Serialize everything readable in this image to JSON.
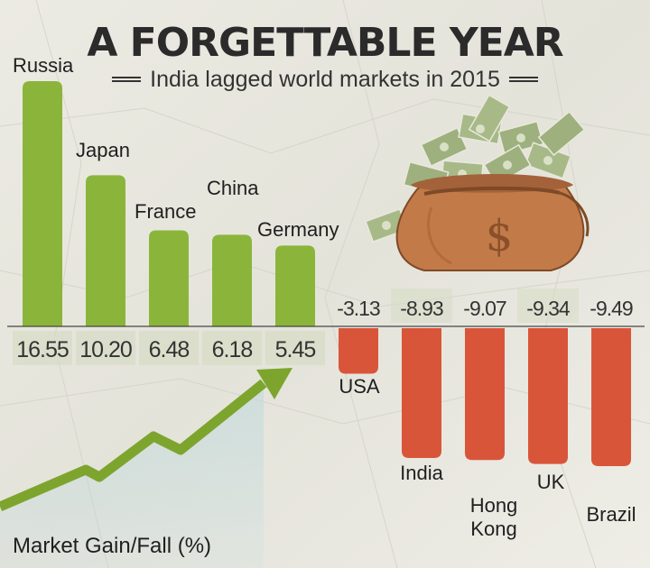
{
  "header": {
    "title": "A FORGETTABLE YEAR",
    "subtitle": "India lagged world markets in 2015"
  },
  "footer": {
    "label": "Market Gain/Fall (%)"
  },
  "illustration": {
    "icon": "money-bag-icon",
    "symbol": "$"
  },
  "colors": {
    "gain": "#8bb53a",
    "fall": "#d9553a",
    "arrow": "#7da52e",
    "background": "#e9e8e0"
  },
  "chart_data": {
    "type": "bar",
    "title": "A FORGETTABLE YEAR",
    "subtitle": "India lagged world markets in 2015",
    "ylabel": "Market Gain/Fall (%)",
    "categories": [
      "Russia",
      "Japan",
      "France",
      "China",
      "Germany",
      "USA",
      "India",
      "Hong Kong",
      "UK",
      "Brazil"
    ],
    "values": [
      16.55,
      10.2,
      6.48,
      6.18,
      5.45,
      -3.13,
      -8.93,
      -9.07,
      -9.34,
      -9.49
    ],
    "value_labels": [
      "16.55",
      "10.20",
      "6.48",
      "6.18",
      "5.45",
      "-3.13",
      "-8.93",
      "-9.07",
      "-9.34",
      "-9.49"
    ],
    "ylim": [
      -10,
      17
    ],
    "grid": false,
    "legend": "none"
  }
}
